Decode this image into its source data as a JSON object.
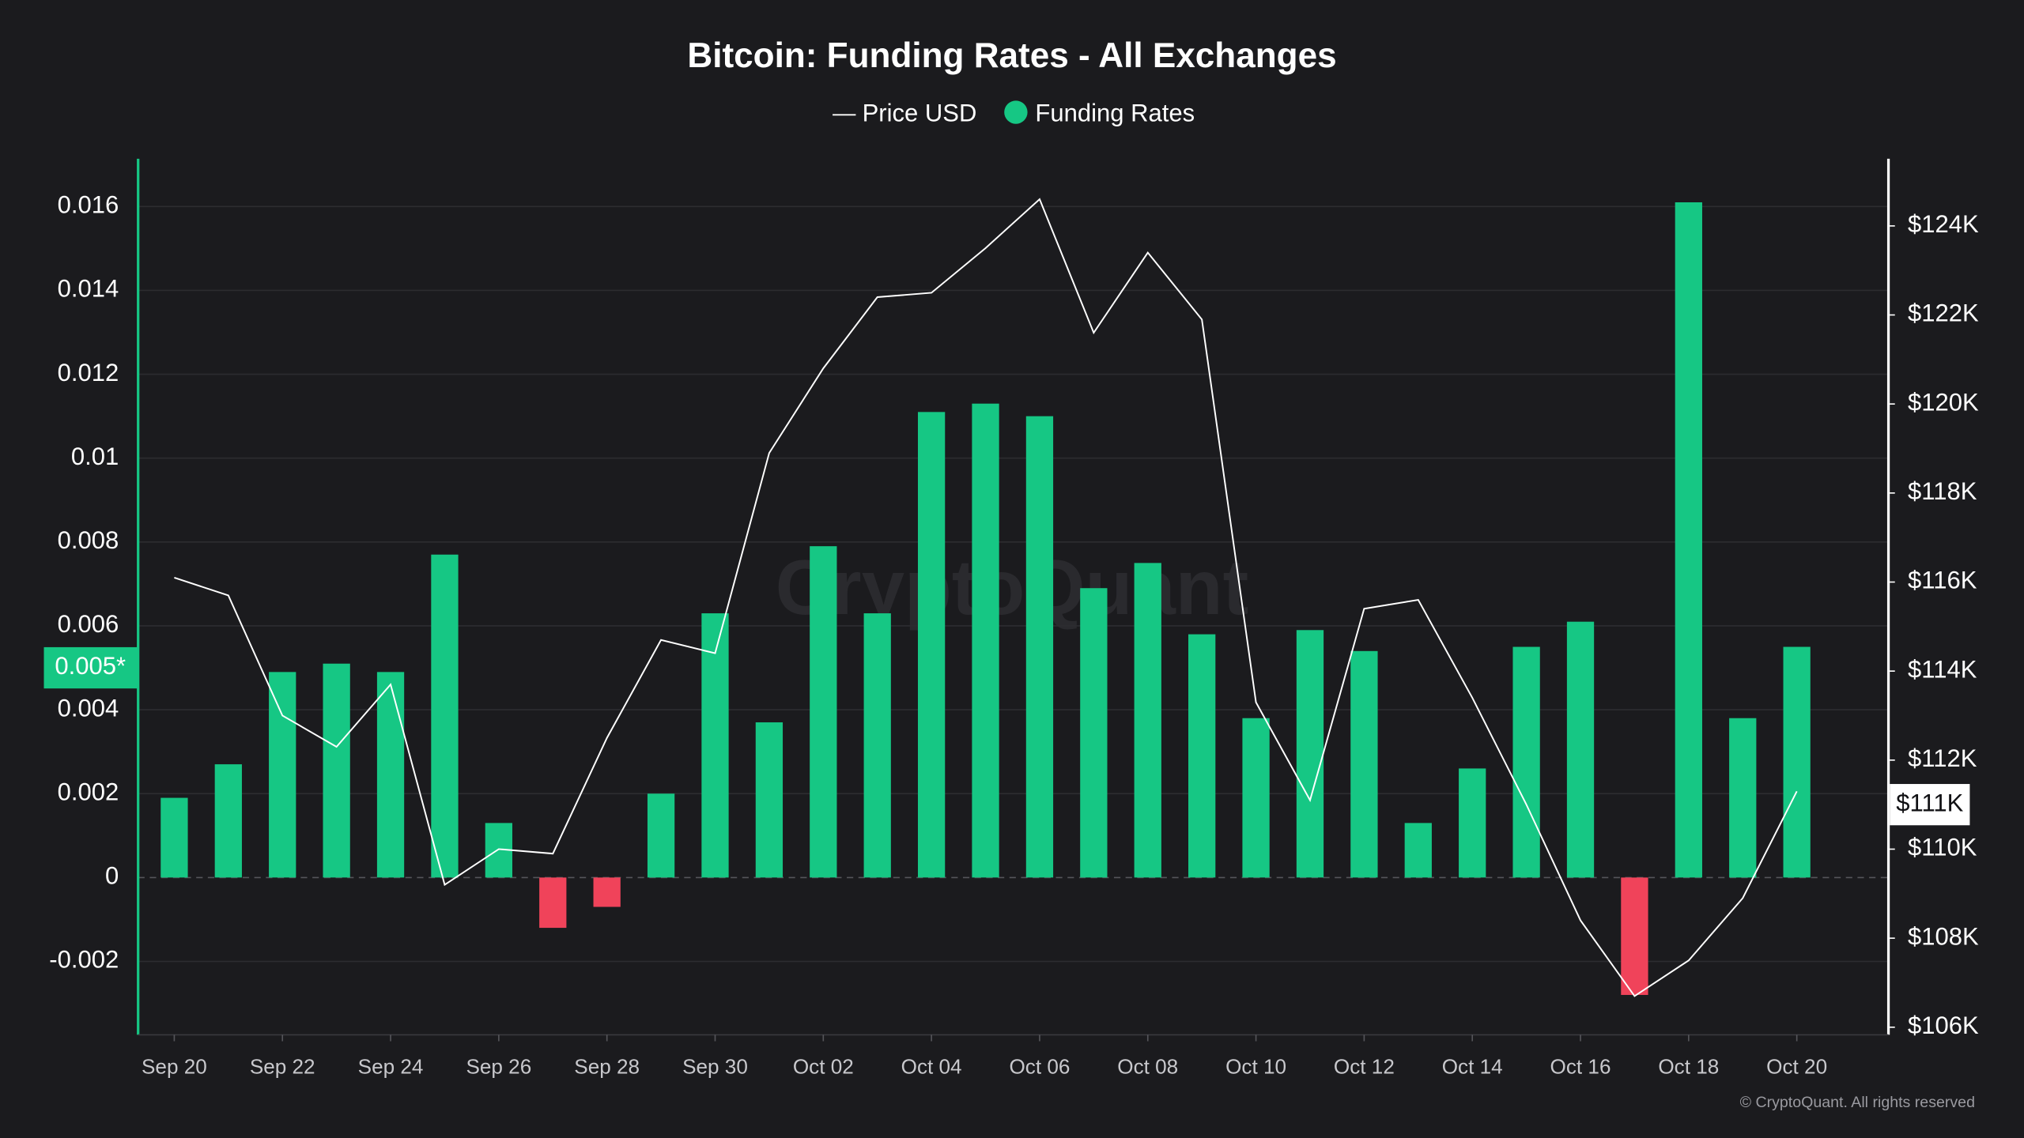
{
  "chart_data": {
    "type": "bar_line",
    "title": "Bitcoin: Funding Rates - All Exchanges",
    "watermark": "CryptoQuant",
    "footer": "© CryptoQuant. All rights reserved",
    "categories": [
      "Sep 20",
      null,
      "Sep 22",
      null,
      "Sep 24",
      null,
      "Sep 26",
      null,
      "Sep 28",
      null,
      "Sep 30",
      null,
      "Oct 02",
      null,
      "Oct 04",
      null,
      "Oct 06",
      null,
      "Oct 08",
      null,
      "Oct 10",
      null,
      "Oct 12",
      null,
      "Oct 14",
      null,
      "Oct 16",
      null,
      "Oct 18",
      null,
      "Oct 20"
    ],
    "series": [
      {
        "name": "Price USD",
        "type": "line",
        "axis": "y2",
        "color": "#ffffff",
        "values": [
          116100,
          115700,
          113000,
          112300,
          113700,
          109200,
          110000,
          109900,
          112500,
          114700,
          114400,
          118900,
          120800,
          122400,
          122500,
          123500,
          124600,
          121600,
          123400,
          121900,
          113300,
          111100,
          115400,
          115600,
          113400,
          111000,
          108400,
          106700,
          107500,
          108900,
          111300
        ]
      },
      {
        "name": "Funding Rates",
        "type": "bar",
        "axis": "y",
        "color": "#16c784",
        "negative_color": "#f0435a",
        "values": [
          0.0019,
          0.0027,
          0.0049,
          0.0051,
          0.0049,
          0.0077,
          0.0013,
          -0.0012,
          -0.0007,
          0.002,
          0.0063,
          0.0037,
          0.0079,
          0.0063,
          0.0111,
          0.0113,
          0.011,
          0.0069,
          0.0075,
          0.0058,
          0.0038,
          0.0059,
          0.0054,
          0.0013,
          0.0026,
          0.0055,
          0.0061,
          -0.0028,
          0.0161,
          0.0038,
          0.0055
        ]
      }
    ],
    "ylim": [
      -0.00375,
      0.01714
    ],
    "yticks": [
      -0.002,
      0,
      0.002,
      0.004,
      0.006,
      0.008,
      0.01,
      0.012,
      0.014,
      0.016
    ],
    "y2lim": [
      105830,
      125510
    ],
    "y2ticks": [
      {
        "value": 106000,
        "label": "$106K"
      },
      {
        "value": 108000,
        "label": "$108K"
      },
      {
        "value": 110000,
        "label": "$110K"
      },
      {
        "value": 112000,
        "label": "$112K"
      },
      {
        "value": 114000,
        "label": "$114K"
      },
      {
        "value": 116000,
        "label": "$116K"
      },
      {
        "value": 118000,
        "label": "$118K"
      },
      {
        "value": 120000,
        "label": "$120K"
      },
      {
        "value": 122000,
        "label": "$122K"
      },
      {
        "value": 124000,
        "label": "$124K"
      }
    ],
    "y_marker": {
      "value": 0.005,
      "label": "0.005*"
    },
    "y2_marker": {
      "value": 111000,
      "label": "$111K"
    },
    "grid": true
  }
}
